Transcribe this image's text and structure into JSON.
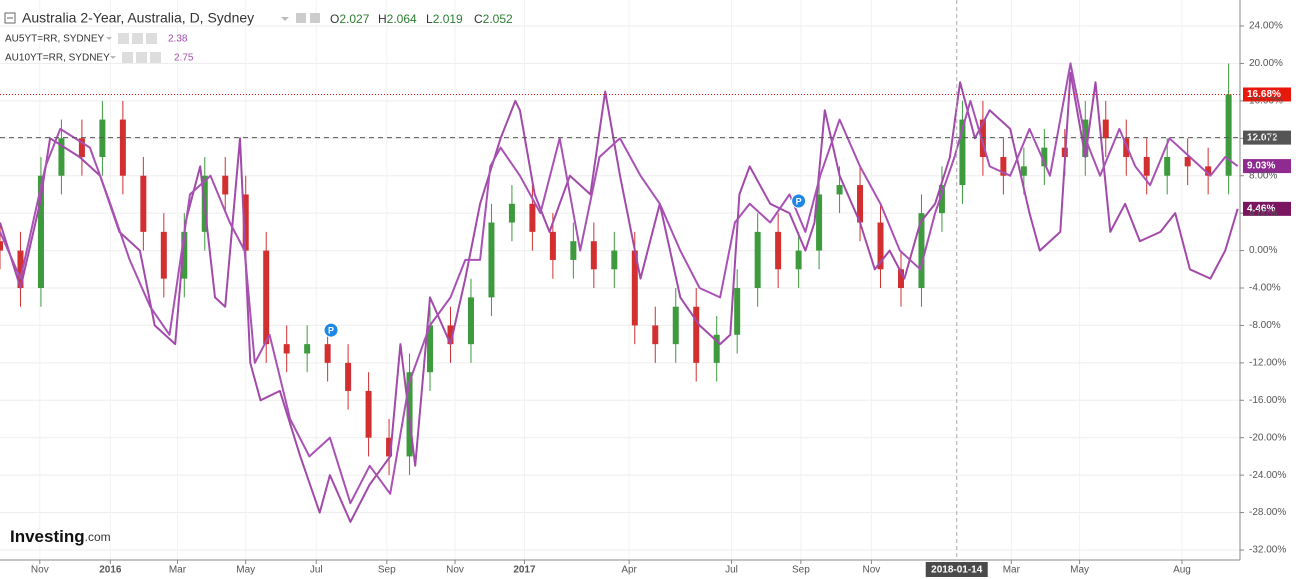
{
  "chart_data": {
    "type": "candlestick",
    "title": "Australia 2-Year, Australia, D, Sydney",
    "ohlc": [
      {
        "key": "O",
        "value": 2.027
      },
      {
        "key": "H",
        "value": 2.064
      },
      {
        "key": "L",
        "value": 2.019
      },
      {
        "key": "C",
        "value": 2.052
      }
    ],
    "x": [
      0,
      18,
      36,
      54,
      72,
      90,
      108,
      126,
      144,
      162,
      180,
      198,
      216,
      234,
      252,
      270,
      288,
      306,
      324,
      342,
      360,
      378,
      396,
      414,
      432,
      450,
      468,
      486,
      504,
      522,
      540,
      558,
      576,
      594,
      612,
      630,
      648,
      666,
      684,
      702,
      720,
      738,
      756,
      774,
      792,
      810,
      828,
      846,
      864,
      882,
      900,
      918,
      936,
      954,
      972,
      990,
      1008,
      1026,
      1044,
      1062,
      1080
    ],
    "open": [
      1,
      0,
      -4,
      8,
      12,
      10,
      14,
      8,
      2,
      -3,
      2,
      8,
      6,
      0,
      -10,
      -11,
      -10,
      -12,
      -15,
      -20,
      -22,
      -13,
      -8,
      -10,
      -5,
      3,
      5,
      2,
      -1,
      1,
      -2,
      0,
      -8,
      -10,
      -6,
      -12,
      -9,
      -4,
      2,
      -2,
      0,
      6,
      7,
      3,
      -2,
      -4,
      4,
      7,
      14,
      10,
      8,
      9,
      11,
      10,
      14,
      12,
      10,
      8,
      10,
      9,
      8
    ],
    "high": [
      3,
      2,
      10,
      14,
      14,
      16,
      16,
      10,
      4,
      4,
      10,
      10,
      8,
      2,
      -8,
      -8,
      -8,
      -10,
      -13,
      -18,
      -11,
      -6,
      -6,
      -3,
      5,
      7,
      7,
      4,
      3,
      3,
      2,
      2,
      -6,
      -4,
      -4,
      -7,
      -2,
      4,
      4,
      2,
      8,
      9,
      9,
      5,
      0,
      6,
      9,
      16,
      16,
      12,
      11,
      13,
      13,
      16,
      16,
      14,
      12,
      12,
      12,
      11,
      20
    ],
    "low": [
      -2,
      -6,
      -6,
      6,
      8,
      8,
      6,
      0,
      -5,
      -5,
      0,
      4,
      -2,
      -12,
      -13,
      -13,
      -14,
      -17,
      -22,
      -24,
      -24,
      -15,
      -12,
      -12,
      -7,
      1,
      0,
      -3,
      -3,
      -4,
      -4,
      -10,
      -12,
      -12,
      -14,
      -14,
      -11,
      -6,
      -4,
      -4,
      -2,
      4,
      1,
      -4,
      -6,
      -6,
      2,
      5,
      8,
      6,
      6,
      7,
      8,
      8,
      10,
      8,
      6,
      6,
      7,
      6,
      6
    ],
    "close": [
      0,
      -4,
      8,
      12,
      10,
      14,
      8,
      2,
      -3,
      2,
      8,
      6,
      0,
      -10,
      -11,
      -10,
      -12,
      -15,
      -20,
      -22,
      -13,
      -8,
      -10,
      -5,
      3,
      5,
      2,
      -1,
      1,
      -2,
      0,
      -8,
      -10,
      -6,
      -12,
      -9,
      -4,
      2,
      -2,
      0,
      6,
      7,
      3,
      -2,
      -4,
      4,
      7,
      14,
      10,
      8,
      9,
      11,
      10,
      14,
      12,
      10,
      8,
      10,
      9,
      8,
      16.68
    ],
    "up_color": "#3d9a3d",
    "down_color": "#d23030",
    "series": [
      {
        "name": "AU5YT=RR, SYDNEY",
        "last": 2.38,
        "color": "#a24aa9",
        "x": [
          0,
          18,
          35,
          44,
          70,
          88,
          105,
          123,
          136,
          154,
          163,
          176,
          189,
          198,
          211,
          220,
          229,
          246,
          264,
          281,
          290,
          308,
          325,
          343,
          352,
          365,
          378,
          396,
          409,
          422,
          440,
          453,
          457,
          470,
          483,
          501,
          519,
          532,
          545,
          563,
          580,
          598,
          615,
          633,
          642,
          650,
          659,
          677,
          694,
          708,
          716,
          725,
          738,
          756,
          769,
          782,
          795,
          809,
          822,
          835,
          844,
          857,
          870,
          888,
          905,
          914,
          932,
          941,
          954,
          963,
          976,
          989,
          1002,
          1020,
          1033,
          1046,
          1064,
          1077,
          1088
        ],
        "values": [
          3,
          -4,
          5,
          12,
          10,
          8,
          2,
          0,
          -8,
          -10,
          3,
          9,
          -5,
          -6,
          12,
          -12,
          -16,
          -15,
          -22,
          -28,
          -24,
          -29,
          -25,
          -22,
          -10,
          -23,
          -5,
          -10,
          -3,
          5,
          12,
          16,
          15,
          6,
          2,
          8,
          6,
          17,
          8,
          -3,
          5,
          -5,
          -8,
          -10,
          -9,
          6,
          9,
          5,
          4,
          0,
          3,
          15,
          8,
          3,
          -2,
          0,
          -3,
          3,
          5,
          10,
          18,
          12,
          15,
          13,
          4,
          0,
          2,
          19,
          10,
          18,
          2,
          5,
          1,
          2,
          4,
          -2,
          -3,
          0,
          4.46
        ]
      },
      {
        "name": "AU10YT=RR, SYDNEY",
        "last": 2.75,
        "color": "#a852b4",
        "x": [
          0,
          18,
          40,
          53,
          79,
          97,
          114,
          132,
          149,
          167,
          185,
          202,
          215,
          224,
          237,
          255,
          272,
          290,
          308,
          325,
          343,
          360,
          378,
          396,
          409,
          422,
          431,
          440,
          457,
          475,
          492,
          510,
          527,
          545,
          563,
          580,
          598,
          615,
          633,
          646,
          659,
          677,
          694,
          708,
          721,
          738,
          756,
          774,
          791,
          809,
          822,
          839,
          853,
          870,
          888,
          905,
          923,
          941,
          954,
          967,
          984,
          998,
          1011,
          1028,
          1046,
          1064,
          1077,
          1088
        ],
        "values": [
          2,
          -3,
          9,
          13,
          11,
          5,
          -1,
          -6,
          -9,
          6,
          8,
          3,
          0,
          -12,
          -9,
          -18,
          -22,
          -20,
          -27,
          -23,
          -26,
          -14,
          -8,
          -5,
          -1,
          -1,
          9,
          11,
          8,
          4,
          12,
          0,
          10,
          12,
          8,
          5,
          0,
          -4,
          -5,
          3,
          5,
          3,
          6,
          2,
          8,
          14,
          9,
          5,
          0,
          -2,
          4,
          10,
          16,
          9,
          8,
          13,
          8,
          20,
          12,
          8,
          13,
          9,
          7,
          12,
          10,
          8,
          10,
          9.03
        ]
      }
    ],
    "xlim": [
      0,
      1090
    ],
    "xticks": [
      {
        "value": 35,
        "label": "Nov"
      },
      {
        "value": 97,
        "label": "2016"
      },
      {
        "value": 156,
        "label": "Mar"
      },
      {
        "value": 216,
        "label": "May"
      },
      {
        "value": 278,
        "label": "Jul"
      },
      {
        "value": 340,
        "label": "Sep"
      },
      {
        "value": 400,
        "label": "Nov"
      },
      {
        "value": 461,
        "label": "2017"
      },
      {
        "value": 553,
        "label": "Apr"
      },
      {
        "value": 643,
        "label": "Jul"
      },
      {
        "value": 704,
        "label": "Sep"
      },
      {
        "value": 766,
        "label": "Nov"
      },
      {
        "value": 889,
        "label": "Mar"
      },
      {
        "value": 949,
        "label": "May"
      },
      {
        "value": 1039,
        "label": "Aug"
      }
    ],
    "ylim": [
      -33.07,
      26.78
    ],
    "yticks": [
      {
        "value": 24,
        "label": "24.00%"
      },
      {
        "value": 20,
        "label": "20.00%"
      },
      {
        "value": 16,
        "label": "16.00%"
      },
      {
        "value": 12,
        "label": "12.00%"
      },
      {
        "value": 8,
        "label": "8.00%"
      },
      {
        "value": 4,
        "label": "4.00%"
      },
      {
        "value": 0,
        "label": "0.00%"
      },
      {
        "value": -4,
        "label": "-4.00%"
      },
      {
        "value": -8,
        "label": "-8.00%"
      },
      {
        "value": -12,
        "label": "-12.00%"
      },
      {
        "value": -16,
        "label": "-16.00%"
      },
      {
        "value": -20,
        "label": "-20.00%"
      },
      {
        "value": -24,
        "label": "-24.00%"
      },
      {
        "value": -28,
        "label": "-28.00%"
      },
      {
        "value": -32,
        "label": "-32.00%"
      }
    ],
    "grid": true,
    "price_labels": [
      {
        "value": 16.68,
        "label": "16.68%",
        "color": "#e8180c",
        "line": "dotted"
      },
      {
        "value": 12.072,
        "label": "12.072",
        "color": "#555555",
        "line": "dashed"
      },
      {
        "value": 9.03,
        "label": "9.03%",
        "color": "#8e2a90"
      },
      {
        "value": 4.46,
        "label": "4.46%",
        "color": "#7a1560"
      }
    ],
    "crosshair": {
      "value": 841,
      "label": "2018-01-14"
    },
    "markers": [
      {
        "x": 291,
        "y": -8.5,
        "label": "P"
      },
      {
        "x": 702,
        "y": 5.3,
        "label": "P"
      }
    ],
    "watermark": {
      "brand": "Investing",
      "suffix": ".com"
    }
  }
}
